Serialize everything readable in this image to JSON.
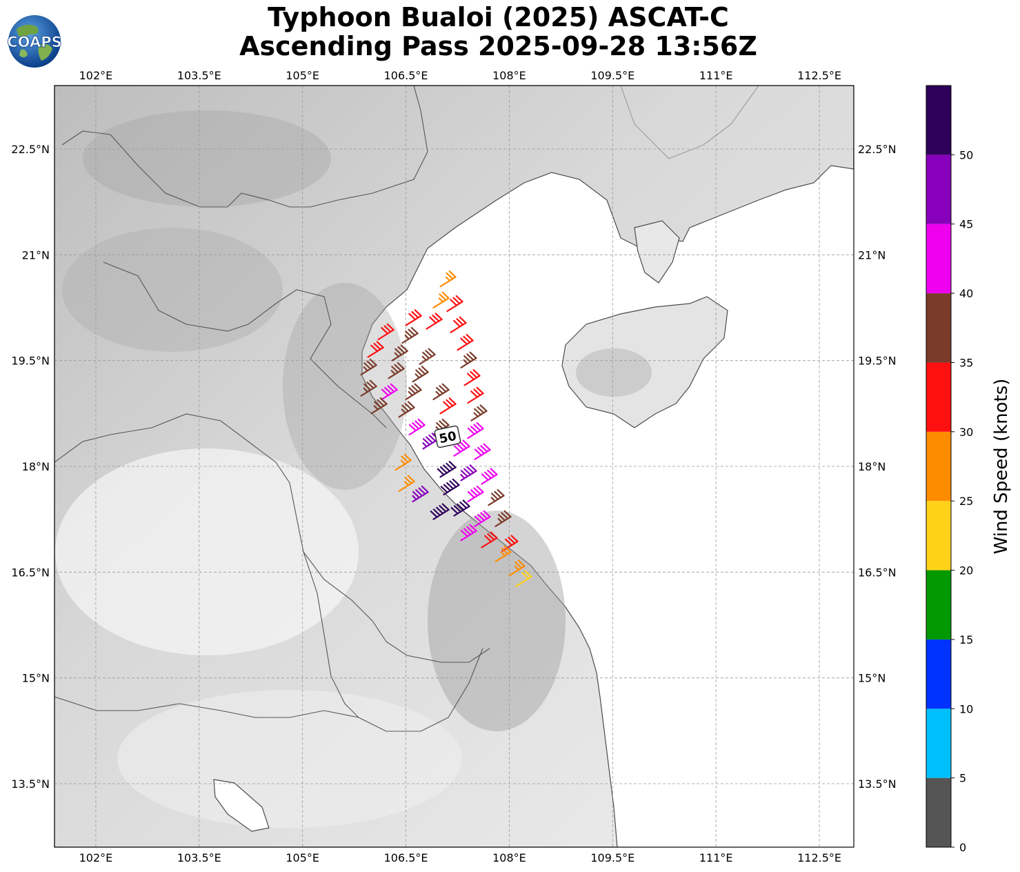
{
  "title": {
    "line1": "Typhoon Bualoi (2025) ASCAT-C",
    "line2": "Ascending Pass 2025-09-28 13:56Z"
  },
  "logo": {
    "text": "COAPS"
  },
  "map": {
    "lon_range": [
      101.4,
      113.0
    ],
    "lat_range": [
      12.6,
      23.4
    ],
    "lon_ticks": [
      "102°E",
      "103.5°E",
      "105°E",
      "106.5°E",
      "108°E",
      "109.5°E",
      "111°E",
      "112.5°E"
    ],
    "lat_ticks": [
      "13.5°N",
      "15°N",
      "16.5°N",
      "18°N",
      "19.5°N",
      "21°N",
      "22.5°N"
    ],
    "gridlines": true,
    "center_label": "50"
  },
  "colorbar": {
    "label": "Wind Speed (knots)",
    "ticks": [
      "0",
      "5",
      "10",
      "15",
      "20",
      "25",
      "30",
      "35",
      "40",
      "45",
      "50"
    ],
    "colors": [
      "#555555",
      "#00bfff",
      "#0033ff",
      "#009900",
      "#ffd21a",
      "#ff8c00",
      "#ff1010",
      "#7a3b2a",
      "#ee00ee",
      "#8800bb",
      "#2e005a"
    ]
  },
  "chart_data": {
    "type": "scatter",
    "xlabel": "",
    "ylabel": "Wind Speed (knots)",
    "xlim": [
      101.4,
      113.0
    ],
    "ylim": [
      12.6,
      23.4
    ],
    "series": [
      {
        "values": [
          {
            "lon": 107.0,
            "lat": 20.55,
            "kt": 27
          },
          {
            "lon": 106.9,
            "lat": 20.25,
            "kt": 27
          },
          {
            "lon": 107.1,
            "lat": 20.2,
            "kt": 32
          },
          {
            "lon": 106.5,
            "lat": 20.0,
            "kt": 32
          },
          {
            "lon": 106.8,
            "lat": 19.95,
            "kt": 32
          },
          {
            "lon": 107.15,
            "lat": 19.9,
            "kt": 32
          },
          {
            "lon": 106.1,
            "lat": 19.8,
            "kt": 32
          },
          {
            "lon": 106.45,
            "lat": 19.75,
            "kt": 37
          },
          {
            "lon": 107.25,
            "lat": 19.65,
            "kt": 32
          },
          {
            "lon": 105.95,
            "lat": 19.55,
            "kt": 32
          },
          {
            "lon": 106.3,
            "lat": 19.5,
            "kt": 37
          },
          {
            "lon": 106.7,
            "lat": 19.45,
            "kt": 37
          },
          {
            "lon": 107.3,
            "lat": 19.4,
            "kt": 37
          },
          {
            "lon": 105.85,
            "lat": 19.3,
            "kt": 37
          },
          {
            "lon": 106.25,
            "lat": 19.25,
            "kt": 37
          },
          {
            "lon": 106.6,
            "lat": 19.2,
            "kt": 37
          },
          {
            "lon": 107.35,
            "lat": 19.15,
            "kt": 32
          },
          {
            "lon": 105.85,
            "lat": 19.0,
            "kt": 37
          },
          {
            "lon": 106.15,
            "lat": 18.95,
            "kt": 42
          },
          {
            "lon": 106.5,
            "lat": 18.95,
            "kt": 37
          },
          {
            "lon": 106.9,
            "lat": 18.95,
            "kt": 37
          },
          {
            "lon": 107.4,
            "lat": 18.9,
            "kt": 32
          },
          {
            "lon": 106.0,
            "lat": 18.75,
            "kt": 37
          },
          {
            "lon": 106.4,
            "lat": 18.7,
            "kt": 37
          },
          {
            "lon": 107.0,
            "lat": 18.75,
            "kt": 32
          },
          {
            "lon": 107.45,
            "lat": 18.65,
            "kt": 37
          },
          {
            "lon": 106.55,
            "lat": 18.45,
            "kt": 42
          },
          {
            "lon": 106.9,
            "lat": 18.45,
            "kt": 37
          },
          {
            "lon": 107.4,
            "lat": 18.4,
            "kt": 42
          },
          {
            "lon": 106.75,
            "lat": 18.25,
            "kt": 47
          },
          {
            "lon": 107.2,
            "lat": 18.15,
            "kt": 42
          },
          {
            "lon": 107.5,
            "lat": 18.1,
            "kt": 42
          },
          {
            "lon": 106.35,
            "lat": 17.95,
            "kt": 27
          },
          {
            "lon": 107.0,
            "lat": 17.85,
            "kt": 52
          },
          {
            "lon": 107.3,
            "lat": 17.8,
            "kt": 47
          },
          {
            "lon": 107.6,
            "lat": 17.75,
            "kt": 42
          },
          {
            "lon": 106.4,
            "lat": 17.65,
            "kt": 27
          },
          {
            "lon": 107.05,
            "lat": 17.6,
            "kt": 52
          },
          {
            "lon": 107.4,
            "lat": 17.5,
            "kt": 42
          },
          {
            "lon": 107.7,
            "lat": 17.45,
            "kt": 37
          },
          {
            "lon": 106.6,
            "lat": 17.5,
            "kt": 47
          },
          {
            "lon": 106.9,
            "lat": 17.25,
            "kt": 52
          },
          {
            "lon": 107.2,
            "lat": 17.3,
            "kt": 52
          },
          {
            "lon": 107.5,
            "lat": 17.15,
            "kt": 42
          },
          {
            "lon": 107.8,
            "lat": 17.15,
            "kt": 37
          },
          {
            "lon": 107.3,
            "lat": 16.95,
            "kt": 42
          },
          {
            "lon": 107.6,
            "lat": 16.85,
            "kt": 32
          },
          {
            "lon": 107.9,
            "lat": 16.8,
            "kt": 32
          },
          {
            "lon": 107.8,
            "lat": 16.65,
            "kt": 27
          },
          {
            "lon": 108.0,
            "lat": 16.45,
            "kt": 27
          },
          {
            "lon": 108.1,
            "lat": 16.3,
            "kt": 22
          }
        ]
      }
    ]
  }
}
